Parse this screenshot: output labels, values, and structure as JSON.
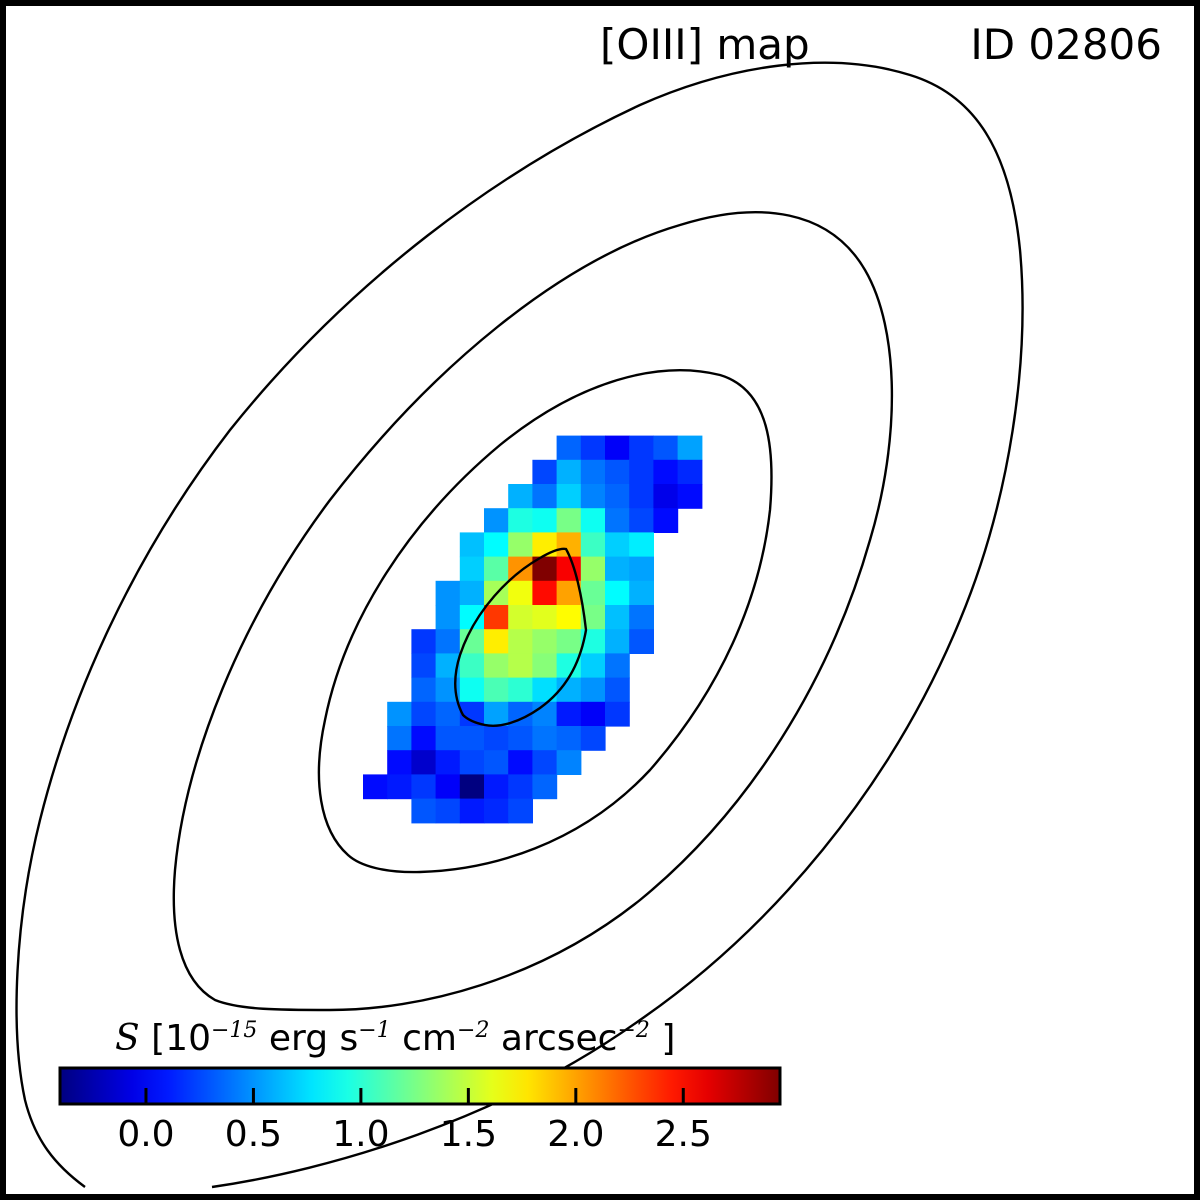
{
  "figure": {
    "title": "[OIII] map",
    "object_id": "ID 02806",
    "colorbar_label": {
      "symbol": "S",
      "open": "[10",
      "exp1": "−15",
      "unit1": "erg s",
      "exp2": "−1",
      "unit2": "cm",
      "exp3": "−2",
      "unit3": "arcsec",
      "exp4": "−2",
      "close": "]"
    }
  },
  "chart_data": {
    "type": "heatmap",
    "title": "[OIII] map",
    "annotation": "ID 02806",
    "colormap": "jet",
    "colorbar": {
      "label": "S [10^-15 erg s^-1 cm^-2 arcsec^-2]",
      "vmin": -0.4,
      "vmax": 2.95,
      "ticks": [
        0.0,
        0.5,
        1.0,
        1.5,
        2.0,
        2.5
      ],
      "tick_labels": [
        "0.0",
        "0.5",
        "1.0",
        "1.5",
        "2.0",
        "2.5"
      ]
    },
    "grid": {
      "col_start": 15,
      "row_start": 18,
      "values": [
        [
          null,
          null,
          null,
          null,
          null,
          null,
          null,
          null,
          0.35,
          0.2,
          0.0,
          0.2,
          0.3,
          0.55
        ],
        [
          null,
          null,
          null,
          null,
          null,
          null,
          null,
          0.25,
          0.6,
          0.4,
          0.3,
          0.2,
          0.05,
          0.15
        ],
        [
          null,
          null,
          null,
          null,
          null,
          null,
          0.6,
          0.4,
          0.7,
          0.45,
          0.35,
          0.2,
          -0.05,
          0.05
        ],
        [
          null,
          null,
          null,
          null,
          null,
          0.5,
          0.95,
          0.9,
          1.25,
          0.9,
          0.4,
          0.25,
          0.05,
          null
        ],
        [
          null,
          null,
          null,
          null,
          0.65,
          0.85,
          1.35,
          1.75,
          1.95,
          1.05,
          0.7,
          0.8,
          null,
          null
        ],
        [
          null,
          null,
          null,
          null,
          0.7,
          1.15,
          2.05,
          2.95,
          2.55,
          1.35,
          0.6,
          0.55,
          null,
          null
        ],
        [
          null,
          null,
          null,
          0.5,
          0.6,
          1.4,
          1.65,
          2.5,
          2.0,
          1.2,
          0.85,
          0.6,
          null,
          null
        ],
        [
          null,
          null,
          null,
          0.5,
          0.85,
          2.35,
          1.55,
          1.6,
          1.7,
          1.25,
          0.65,
          0.4,
          null,
          null
        ],
        [
          null,
          null,
          0.2,
          0.4,
          1.2,
          1.75,
          1.45,
          1.35,
          1.25,
          0.95,
          0.6,
          0.3,
          null,
          null
        ],
        [
          null,
          null,
          0.25,
          0.6,
          1.05,
          1.35,
          1.45,
          1.3,
          0.95,
          0.7,
          0.4,
          null,
          null,
          null
        ],
        [
          null,
          null,
          0.35,
          0.5,
          0.9,
          1.1,
          1.0,
          0.75,
          0.6,
          0.5,
          0.3,
          null,
          null,
          null
        ],
        [
          null,
          0.5,
          0.25,
          0.35,
          0.2,
          0.55,
          0.35,
          0.45,
          0.1,
          0.0,
          0.2,
          null,
          null,
          null
        ],
        [
          null,
          0.4,
          0.05,
          0.3,
          0.3,
          0.25,
          0.3,
          0.4,
          0.35,
          0.25,
          null,
          null,
          null,
          null
        ],
        [
          null,
          0.05,
          -0.15,
          0.1,
          0.25,
          0.3,
          0.05,
          0.25,
          0.45,
          null,
          null,
          null,
          null,
          null
        ],
        [
          0.05,
          0.1,
          0.2,
          0.0,
          -0.4,
          0.1,
          0.2,
          0.35,
          null,
          null,
          null,
          null,
          null,
          null
        ],
        [
          null,
          null,
          0.3,
          0.25,
          0.1,
          0.15,
          0.25,
          null,
          null,
          null,
          null,
          null,
          null,
          null
        ]
      ]
    },
    "contours": {
      "levels_shown": 4,
      "style": "black solid lines"
    }
  }
}
